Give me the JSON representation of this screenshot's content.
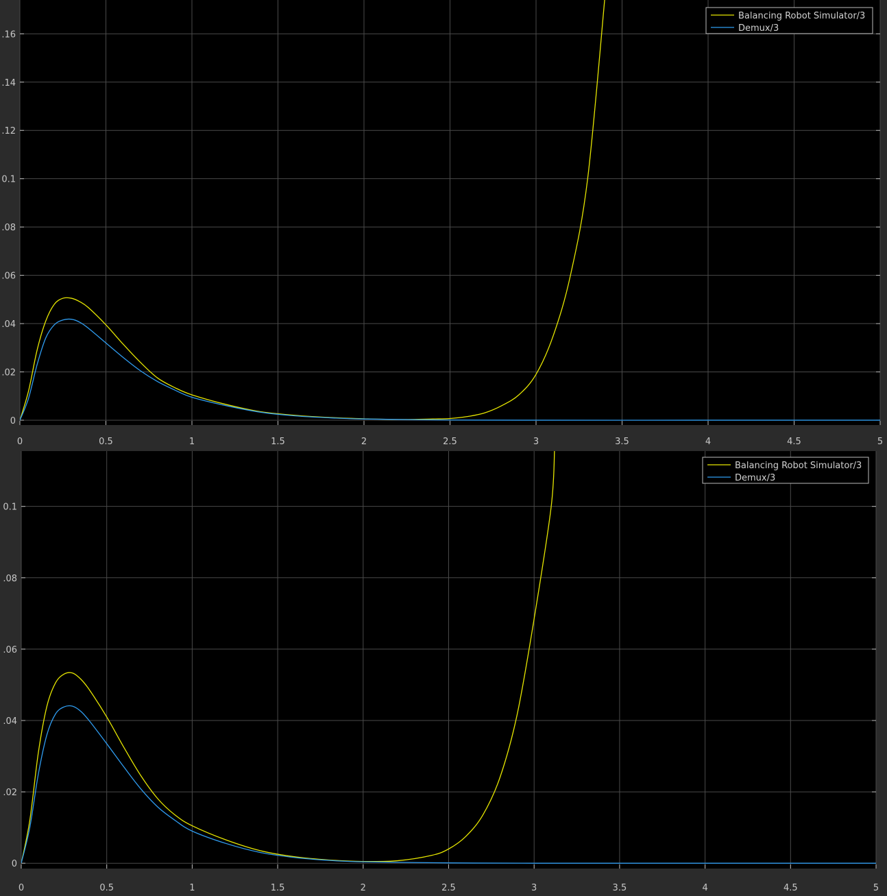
{
  "colors": {
    "figure_bg": "#2b2b2b",
    "plot_bg": "#000000",
    "grid": "#4a4a4a",
    "tick_text": "#c8c8c8",
    "legend_text": "#d0d0d0",
    "legend_border": "#bdbdbd"
  },
  "chart_data": [
    {
      "type": "line",
      "title": "",
      "xlabel": "",
      "ylabel": "",
      "xlim": [
        0,
        5
      ],
      "ylim": [
        -0.002,
        0.174
      ],
      "grid": true,
      "legend_position": "top-right",
      "xticks": [
        0,
        0.5,
        1,
        1.5,
        2,
        2.5,
        3,
        3.5,
        4,
        4.5,
        5
      ],
      "xtick_labels": [
        "0",
        "0.5",
        "1",
        "1.5",
        "2",
        "2.5",
        "3",
        "3.5",
        "4",
        "4.5",
        "5"
      ],
      "yticks": [
        0,
        0.02,
        0.04,
        0.06,
        0.08,
        0.1,
        0.12,
        0.14,
        0.16
      ],
      "ytick_labels": [
        "0",
        ".02",
        ".04",
        ".06",
        ".08",
        "0.1",
        ".12",
        ".14",
        ".16"
      ],
      "series": [
        {
          "name": "Balancing Robot Simulator/3",
          "color": "#e6e600",
          "points": [
            [
              0,
              0
            ],
            [
              0.05,
              0.012
            ],
            [
              0.1,
              0.029
            ],
            [
              0.15,
              0.041
            ],
            [
              0.2,
              0.048
            ],
            [
              0.25,
              0.0505
            ],
            [
              0.3,
              0.0505
            ],
            [
              0.35,
              0.049
            ],
            [
              0.4,
              0.0465
            ],
            [
              0.5,
              0.0395
            ],
            [
              0.6,
              0.0315
            ],
            [
              0.7,
              0.024
            ],
            [
              0.8,
              0.0175
            ],
            [
              0.9,
              0.0135
            ],
            [
              1.0,
              0.0105
            ],
            [
              1.2,
              0.0065
            ],
            [
              1.4,
              0.0035
            ],
            [
              1.6,
              0.002
            ],
            [
              1.8,
              0.0011
            ],
            [
              2.0,
              0.0006
            ],
            [
              2.2,
              0.0003
            ],
            [
              2.4,
              0.0005
            ],
            [
              2.5,
              0.0007
            ],
            [
              2.6,
              0.0015
            ],
            [
              2.7,
              0.003
            ],
            [
              2.8,
              0.006
            ],
            [
              2.9,
              0.0105
            ],
            [
              3.0,
              0.019
            ],
            [
              3.1,
              0.035
            ],
            [
              3.2,
              0.06
            ],
            [
              3.3,
              0.1
            ],
            [
              3.4,
              0.175
            ]
          ]
        },
        {
          "name": "Demux/3",
          "color": "#2f9cf0",
          "points": [
            [
              0,
              0
            ],
            [
              0.05,
              0.009
            ],
            [
              0.1,
              0.023
            ],
            [
              0.15,
              0.034
            ],
            [
              0.2,
              0.0395
            ],
            [
              0.25,
              0.0415
            ],
            [
              0.3,
              0.0418
            ],
            [
              0.35,
              0.0405
            ],
            [
              0.4,
              0.038
            ],
            [
              0.5,
              0.032
            ],
            [
              0.6,
              0.026
            ],
            [
              0.7,
              0.0205
            ],
            [
              0.8,
              0.016
            ],
            [
              0.9,
              0.0125
            ],
            [
              1.0,
              0.0095
            ],
            [
              1.2,
              0.006
            ],
            [
              1.4,
              0.0033
            ],
            [
              1.6,
              0.0018
            ],
            [
              1.8,
              0.001
            ],
            [
              2.0,
              0.0005
            ],
            [
              2.5,
              0.0001
            ],
            [
              3.0,
              0
            ],
            [
              4.0,
              0
            ],
            [
              5.0,
              0
            ]
          ]
        }
      ]
    },
    {
      "type": "line",
      "title": "",
      "xlabel": "",
      "ylabel": "",
      "xlim": [
        0,
        5
      ],
      "ylim": [
        -0.0015,
        0.1155
      ],
      "grid": true,
      "legend_position": "top-right",
      "xticks": [
        0,
        0.5,
        1,
        1.5,
        2,
        2.5,
        3,
        3.5,
        4,
        4.5,
        5
      ],
      "xtick_labels": [
        "0",
        "0.5",
        "1",
        "1.5",
        "2",
        "2.5",
        "3",
        "3.5",
        "4",
        "4.5",
        "5"
      ],
      "yticks": [
        0,
        0.02,
        0.04,
        0.06,
        0.08,
        0.1
      ],
      "ytick_labels": [
        "0",
        ".02",
        ".04",
        ".06",
        ".08",
        "0.1"
      ],
      "series": [
        {
          "name": "Balancing Robot Simulator/3",
          "color": "#e6e600",
          "points": [
            [
              0,
              0
            ],
            [
              0.05,
              0.012
            ],
            [
              0.1,
              0.031
            ],
            [
              0.15,
              0.044
            ],
            [
              0.2,
              0.0505
            ],
            [
              0.25,
              0.053
            ],
            [
              0.3,
              0.0533
            ],
            [
              0.35,
              0.0515
            ],
            [
              0.4,
              0.0485
            ],
            [
              0.5,
              0.041
            ],
            [
              0.6,
              0.0325
            ],
            [
              0.7,
              0.0245
            ],
            [
              0.8,
              0.018
            ],
            [
              0.9,
              0.0135
            ],
            [
              1.0,
              0.0105
            ],
            [
              1.2,
              0.0065
            ],
            [
              1.4,
              0.0035
            ],
            [
              1.6,
              0.0018
            ],
            [
              1.8,
              0.0009
            ],
            [
              2.0,
              0.0005
            ],
            [
              2.2,
              0.0007
            ],
            [
              2.4,
              0.0022
            ],
            [
              2.5,
              0.004
            ],
            [
              2.6,
              0.0075
            ],
            [
              2.7,
              0.0135
            ],
            [
              2.8,
              0.024
            ],
            [
              2.9,
              0.0415
            ],
            [
              3.0,
              0.0685
            ],
            [
              3.1,
              0.1
            ],
            [
              3.12,
              0.117
            ]
          ]
        },
        {
          "name": "Demux/3",
          "color": "#2f9cf0",
          "points": [
            [
              0,
              0
            ],
            [
              0.05,
              0.01
            ],
            [
              0.1,
              0.025
            ],
            [
              0.15,
              0.036
            ],
            [
              0.2,
              0.0418
            ],
            [
              0.25,
              0.0438
            ],
            [
              0.3,
              0.044
            ],
            [
              0.35,
              0.0425
            ],
            [
              0.4,
              0.0398
            ],
            [
              0.5,
              0.0335
            ],
            [
              0.6,
              0.027
            ],
            [
              0.7,
              0.0208
            ],
            [
              0.8,
              0.0157
            ],
            [
              0.9,
              0.012
            ],
            [
              1.0,
              0.009
            ],
            [
              1.2,
              0.0055
            ],
            [
              1.4,
              0.003
            ],
            [
              1.6,
              0.0016
            ],
            [
              1.8,
              0.0008
            ],
            [
              2.0,
              0.0004
            ],
            [
              2.5,
              0.0001
            ],
            [
              3.0,
              0
            ],
            [
              4.0,
              0
            ],
            [
              5.0,
              0
            ]
          ]
        }
      ]
    }
  ]
}
